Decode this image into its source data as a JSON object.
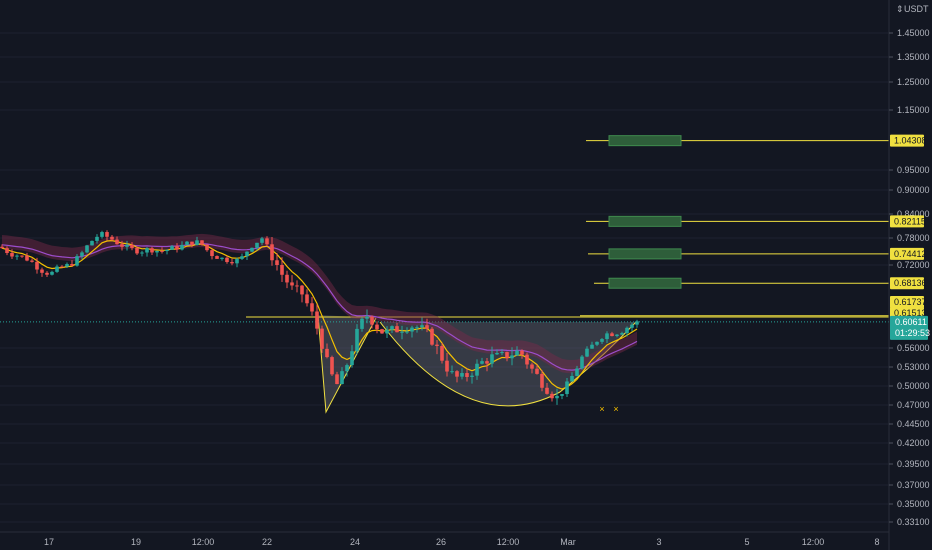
{
  "currency_label": "USDT",
  "current_price": "0.60611",
  "countdown": "01:29:53",
  "colors": {
    "background": "#131722",
    "up": "#26a69a",
    "down": "#ef5350",
    "ema_fast": "#f5c000",
    "ema_slow": "#9c4dcc",
    "level_line": "#f0e040",
    "target_box": "#2e5e3a",
    "last_price_line": "#26a69a",
    "pattern_fill": "#787b86"
  },
  "chart_data": {
    "type": "candlestick",
    "title": "",
    "xlabel": "",
    "ylabel": "",
    "y_axis": {
      "ticks": [
        "1.45000",
        "1.35000",
        "1.25000",
        "1.15000",
        "0.95000",
        "0.90000",
        "0.84000",
        "0.78000",
        "0.72000",
        "0.56000",
        "0.53000",
        "0.50000",
        "0.47000",
        "0.44500",
        "0.42000",
        "0.39500",
        "0.37000",
        "0.35000",
        "0.33100"
      ],
      "scale": "log"
    },
    "x_axis": {
      "ticks": [
        "17",
        "19",
        "12:00",
        "22",
        "24",
        "26",
        "12:00",
        "Mar",
        "3",
        "5",
        "12:00",
        "8"
      ]
    },
    "levels": [
      {
        "label": "1.04308",
        "value": 1.04308
      },
      {
        "label": "0.82115",
        "value": 0.82115
      },
      {
        "label": "0.74412",
        "value": 0.74412
      },
      {
        "label": "0.68136",
        "value": 0.68136
      },
      {
        "label": "0.61737",
        "value": 0.61737
      },
      {
        "label": "0.61513",
        "value": 0.61513
      }
    ],
    "last_price": 0.60611,
    "pattern": "cup and handle with harmonic zigzag",
    "markers": [
      "×",
      "×"
    ]
  }
}
